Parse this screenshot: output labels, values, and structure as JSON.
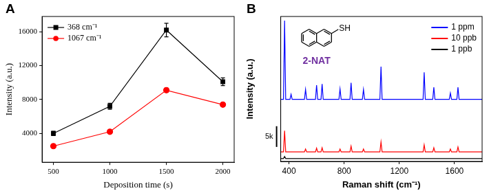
{
  "chart_data": [
    {
      "panel": "A",
      "type": "line",
      "x_label": "Deposition time (s)",
      "y_label": "Intensity (a.u.)",
      "x": [
        500,
        1000,
        1500,
        2000
      ],
      "series": [
        {
          "name": "368 cm⁻¹",
          "color": "#000000",
          "marker": "square",
          "line_style": "solid",
          "values": [
            4000,
            7200,
            16200,
            10100
          ],
          "errors": [
            250,
            350,
            800,
            450
          ]
        },
        {
          "name": "1067 cm⁻¹",
          "color": "#ff0000",
          "marker": "circle",
          "line_style": "solid",
          "values": [
            2500,
            4200,
            9100,
            7400
          ],
          "errors": [
            100,
            150,
            250,
            150
          ]
        }
      ],
      "xlim": [
        400,
        2100
      ],
      "xticks": [
        500,
        1000,
        1500,
        2000
      ],
      "ylim": [
        600,
        17800
      ],
      "yticks": [
        4000,
        8000,
        12000,
        16000
      ],
      "grid": false,
      "legend": "upper left"
    },
    {
      "panel": "B",
      "type": "line",
      "x_label": "Raman shift (cm⁻¹)",
      "y_label": "Intensity (a.u.)",
      "x": [
        340,
        360,
        368,
        376,
        407,
        415,
        423,
        512,
        520,
        528,
        592,
        600,
        608,
        632,
        640,
        648,
        762,
        770,
        778,
        842,
        850,
        858,
        932,
        940,
        948,
        1059,
        1067,
        1075,
        1372,
        1380,
        1388,
        1442,
        1450,
        1458,
        1562,
        1570,
        1578,
        1617,
        1625,
        1633,
        1800
      ],
      "series": [
        {
          "name": "1 ppm",
          "color": "#0000ff",
          "marker": "none",
          "line_style": "solid",
          "values": [
            15000,
            15000,
            34000,
            15000,
            15000,
            16200,
            15000,
            15000,
            17400,
            15000,
            15000,
            18400,
            15000,
            15000,
            18700,
            15000,
            15000,
            17500,
            15000,
            15000,
            19000,
            15000,
            15000,
            17400,
            15000,
            15000,
            22900,
            15000,
            15000,
            21500,
            15000,
            15000,
            17900,
            15000,
            15000,
            16500,
            15000,
            15000,
            17900,
            15000,
            15000
          ]
        },
        {
          "name": "10 ppb",
          "color": "#ff0000",
          "marker": "none",
          "line_style": "solid",
          "values": [
            2300,
            2300,
            7400,
            2300,
            2300,
            2300,
            2300,
            2300,
            3000,
            2300,
            2300,
            3200,
            2300,
            2300,
            3300,
            2300,
            2300,
            3000,
            2300,
            2300,
            3700,
            2300,
            2300,
            3000,
            2300,
            2300,
            4700,
            2300,
            2300,
            4000,
            2300,
            2300,
            3300,
            2300,
            2300,
            3000,
            2300,
            2300,
            3500,
            2300,
            2300
          ]
        },
        {
          "name": "1 ppb",
          "color": "#000000",
          "marker": "none",
          "line_style": "solid",
          "values": [
            700,
            700,
            1200,
            700,
            700,
            700,
            700,
            700,
            700,
            700,
            700,
            700,
            700,
            700,
            700,
            700,
            700,
            700,
            700,
            700,
            700,
            700,
            700,
            700,
            700,
            700,
            700,
            700,
            700,
            700,
            700,
            700,
            700,
            700,
            700,
            700,
            700,
            700,
            700,
            700,
            700
          ]
        }
      ],
      "xlim": [
        340,
        1800
      ],
      "xticks": [
        400,
        800,
        1200,
        1600
      ],
      "ylim": [
        0,
        35000
      ],
      "tick_labels": "x",
      "grid": false,
      "legend": "upper right",
      "scale_bar": {
        "value": 5000,
        "label": "5k"
      },
      "inset": {
        "label": "2-NAT",
        "substituent": "SH"
      }
    }
  ]
}
